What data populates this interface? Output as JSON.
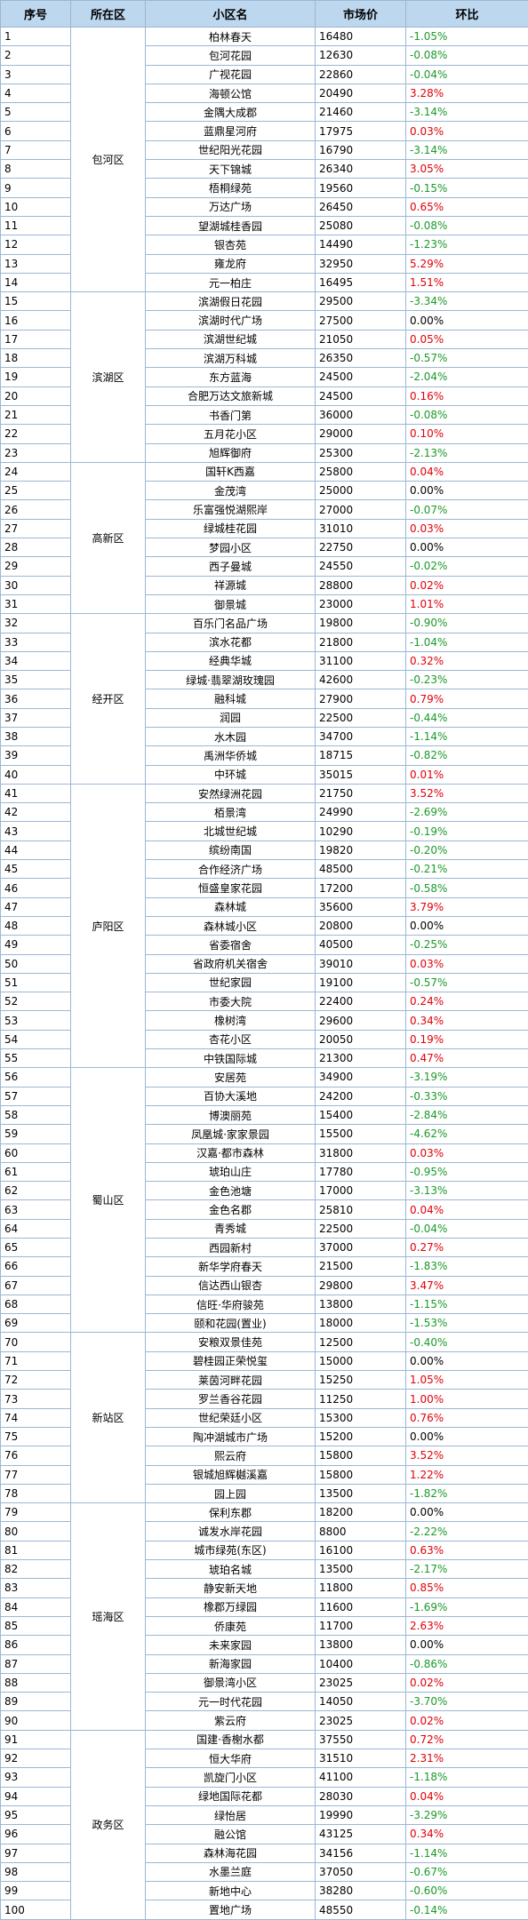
{
  "header": [
    "序号",
    "所在区",
    "小区名",
    "市场价",
    "环比"
  ],
  "groups": [
    {
      "district": "包河区",
      "rows": [
        [
          "1",
          "柏林春天",
          "16480",
          "-1.05%"
        ],
        [
          "2",
          "包河花园",
          "12630",
          "-0.08%"
        ],
        [
          "3",
          "广视花园",
          "22860",
          "-0.04%"
        ],
        [
          "4",
          "海顿公馆",
          "20490",
          "3.28%"
        ],
        [
          "5",
          "金隅大成郡",
          "21460",
          "-3.14%"
        ],
        [
          "6",
          "蓝鼎星河府",
          "17975",
          "0.03%"
        ],
        [
          "7",
          "世纪阳光花园",
          "16790",
          "-3.14%"
        ],
        [
          "8",
          "天下锦城",
          "26340",
          "3.05%"
        ],
        [
          "9",
          "梧桐绿苑",
          "19560",
          "-0.15%"
        ],
        [
          "10",
          "万达广场",
          "26450",
          "0.65%"
        ],
        [
          "11",
          "望湖城桂香园",
          "25080",
          "-0.08%"
        ],
        [
          "12",
          "银杏苑",
          "14490",
          "-1.23%"
        ],
        [
          "13",
          "雍龙府",
          "32950",
          "5.29%"
        ],
        [
          "14",
          "元一柏庄",
          "16495",
          "1.51%"
        ]
      ]
    },
    {
      "district": "滨湖区",
      "rows": [
        [
          "15",
          "滨湖假日花园",
          "29500",
          "-3.34%"
        ],
        [
          "16",
          "滨湖时代广场",
          "27500",
          "0.00%"
        ],
        [
          "17",
          "滨湖世纪城",
          "21050",
          "0.05%"
        ],
        [
          "18",
          "滨湖万科城",
          "26350",
          "-0.57%"
        ],
        [
          "19",
          "东方蓝海",
          "24500",
          "-2.04%"
        ],
        [
          "20",
          "合肥万达文旅新城",
          "24500",
          "0.16%"
        ],
        [
          "21",
          "书香门第",
          "36000",
          "-0.08%"
        ],
        [
          "22",
          "五月花小区",
          "29000",
          "0.10%"
        ],
        [
          "23",
          "旭辉御府",
          "25300",
          "-2.13%"
        ]
      ]
    },
    {
      "district": "高新区",
      "rows": [
        [
          "24",
          "国轩K西嘉",
          "25800",
          "0.04%"
        ],
        [
          "25",
          "金茂湾",
          "25000",
          "0.00%"
        ],
        [
          "26",
          "乐富强悦湖熙岸",
          "27000",
          "-0.07%"
        ],
        [
          "27",
          "绿城桂花园",
          "31010",
          "0.03%"
        ],
        [
          "28",
          "梦园小区",
          "22750",
          "0.00%"
        ],
        [
          "29",
          "西子曼城",
          "24550",
          "-0.02%"
        ],
        [
          "30",
          "祥源城",
          "28800",
          "0.02%"
        ],
        [
          "31",
          "御景城",
          "23000",
          "1.01%"
        ]
      ]
    },
    {
      "district": "经开区",
      "rows": [
        [
          "32",
          "百乐门名品广场",
          "19800",
          "-0.90%"
        ],
        [
          "33",
          "滨水花都",
          "21800",
          "-1.04%"
        ],
        [
          "34",
          "经典华城",
          "31100",
          "0.32%"
        ],
        [
          "35",
          "绿城·翡翠湖玫瑰园",
          "42600",
          "-0.23%"
        ],
        [
          "36",
          "融科城",
          "27900",
          "0.79%"
        ],
        [
          "37",
          "润园",
          "22500",
          "-0.44%"
        ],
        [
          "38",
          "水木园",
          "34700",
          "-1.14%"
        ],
        [
          "39",
          "禹洲华侨城",
          "18715",
          "-0.82%"
        ],
        [
          "40",
          "中环城",
          "35015",
          "0.01%"
        ]
      ]
    },
    {
      "district": "庐阳区",
      "rows": [
        [
          "41",
          "安然绿洲花园",
          "21750",
          "3.52%"
        ],
        [
          "42",
          "栢景湾",
          "24990",
          "-2.69%"
        ],
        [
          "43",
          "北城世纪城",
          "10290",
          "-0.19%"
        ],
        [
          "44",
          "缤纷南国",
          "19820",
          "-0.20%"
        ],
        [
          "45",
          "合作经济广场",
          "48500",
          "-0.21%"
        ],
        [
          "46",
          "恒盛皇家花园",
          "17200",
          "-0.58%"
        ],
        [
          "47",
          "森林城",
          "35600",
          "3.79%"
        ],
        [
          "48",
          "森林城小区",
          "20800",
          "0.00%"
        ],
        [
          "49",
          "省委宿舍",
          "40500",
          "-0.25%"
        ],
        [
          "50",
          "省政府机关宿舍",
          "39010",
          "0.03%"
        ],
        [
          "51",
          "世纪家园",
          "19100",
          "-0.57%"
        ],
        [
          "52",
          "市委大院",
          "22400",
          "0.24%"
        ],
        [
          "53",
          "橡树湾",
          "29600",
          "0.34%"
        ],
        [
          "54",
          "杏花小区",
          "20050",
          "0.19%"
        ],
        [
          "55",
          "中铁国际城",
          "21300",
          "0.47%"
        ]
      ]
    },
    {
      "district": "蜀山区",
      "rows": [
        [
          "56",
          "安居苑",
          "34900",
          "-3.19%"
        ],
        [
          "57",
          "百协大溪地",
          "24200",
          "-0.33%"
        ],
        [
          "58",
          "博澳丽苑",
          "15400",
          "-2.84%"
        ],
        [
          "59",
          "凤凰城·家家景园",
          "15500",
          "-4.62%"
        ],
        [
          "60",
          "汉嘉·都市森林",
          "31800",
          "0.03%"
        ],
        [
          "61",
          "琥珀山庄",
          "17780",
          "-0.95%"
        ],
        [
          "62",
          "金色池塘",
          "17000",
          "-3.13%"
        ],
        [
          "63",
          "金色名郡",
          "25810",
          "0.04%"
        ],
        [
          "64",
          "青秀城",
          "22500",
          "-0.04%"
        ],
        [
          "65",
          "西园新村",
          "37000",
          "0.27%"
        ],
        [
          "66",
          "新华学府春天",
          "21500",
          "-1.83%"
        ],
        [
          "67",
          "信达西山银杏",
          "29800",
          "3.47%"
        ],
        [
          "68",
          "信旺·华府骏苑",
          "13800",
          "-1.15%"
        ],
        [
          "69",
          "颐和花园(置业)",
          "18000",
          "-1.53%"
        ]
      ]
    },
    {
      "district": "新站区",
      "rows": [
        [
          "70",
          "安粮双景佳苑",
          "12500",
          "-0.40%"
        ],
        [
          "71",
          "碧桂园正荣悦玺",
          "15000",
          "0.00%"
        ],
        [
          "72",
          "莱茵河畔花园",
          "15250",
          "1.05%"
        ],
        [
          "73",
          "罗兰香谷花园",
          "11250",
          "1.00%"
        ],
        [
          "74",
          "世纪荣廷小区",
          "15300",
          "0.76%"
        ],
        [
          "75",
          "陶冲湖城市广场",
          "15200",
          "0.00%"
        ],
        [
          "76",
          "熙云府",
          "15800",
          "3.52%"
        ],
        [
          "77",
          "银城旭辉樾溪嘉",
          "15800",
          "1.22%"
        ],
        [
          "78",
          "园上园",
          "13500",
          "-1.82%"
        ]
      ]
    },
    {
      "district": "瑶海区",
      "rows": [
        [
          "79",
          "保利东郡",
          "18200",
          "0.00%"
        ],
        [
          "80",
          "诚发水岸花园",
          "8800",
          "-2.22%"
        ],
        [
          "81",
          "城市绿苑(东区)",
          "16100",
          "0.63%"
        ],
        [
          "82",
          "琥珀名城",
          "13500",
          "-2.17%"
        ],
        [
          "83",
          "静安新天地",
          "11800",
          "0.85%"
        ],
        [
          "84",
          "橡郡万绿园",
          "11600",
          "-1.69%"
        ],
        [
          "85",
          "侨康苑",
          "11700",
          "2.63%"
        ],
        [
          "86",
          "未来家园",
          "13800",
          "0.00%"
        ],
        [
          "87",
          "新海家园",
          "10400",
          "-0.86%"
        ],
        [
          "88",
          "御景湾小区",
          "23025",
          "0.02%"
        ],
        [
          "89",
          "元一时代花园",
          "14050",
          "-3.70%"
        ],
        [
          "90",
          "紫云府",
          "23025",
          "0.02%"
        ]
      ]
    },
    {
      "district": "政务区",
      "rows": [
        [
          "91",
          "国建·香榭水都",
          "37550",
          "0.72%"
        ],
        [
          "92",
          "恒大华府",
          "31510",
          "2.31%"
        ],
        [
          "93",
          "凯旋门小区",
          "41100",
          "-1.18%"
        ],
        [
          "94",
          "绿地国际花都",
          "28030",
          "0.04%"
        ],
        [
          "95",
          "绿怡居",
          "19990",
          "-3.29%"
        ],
        [
          "96",
          "融公馆",
          "43125",
          "0.34%"
        ],
        [
          "97",
          "森林海花园",
          "34156",
          "-1.14%"
        ],
        [
          "98",
          "水墨兰庭",
          "37050",
          "-0.67%"
        ],
        [
          "99",
          "新地中心",
          "38280",
          "-0.60%"
        ],
        [
          "100",
          "置地广场",
          "48550",
          "-0.14%"
        ]
      ]
    }
  ]
}
